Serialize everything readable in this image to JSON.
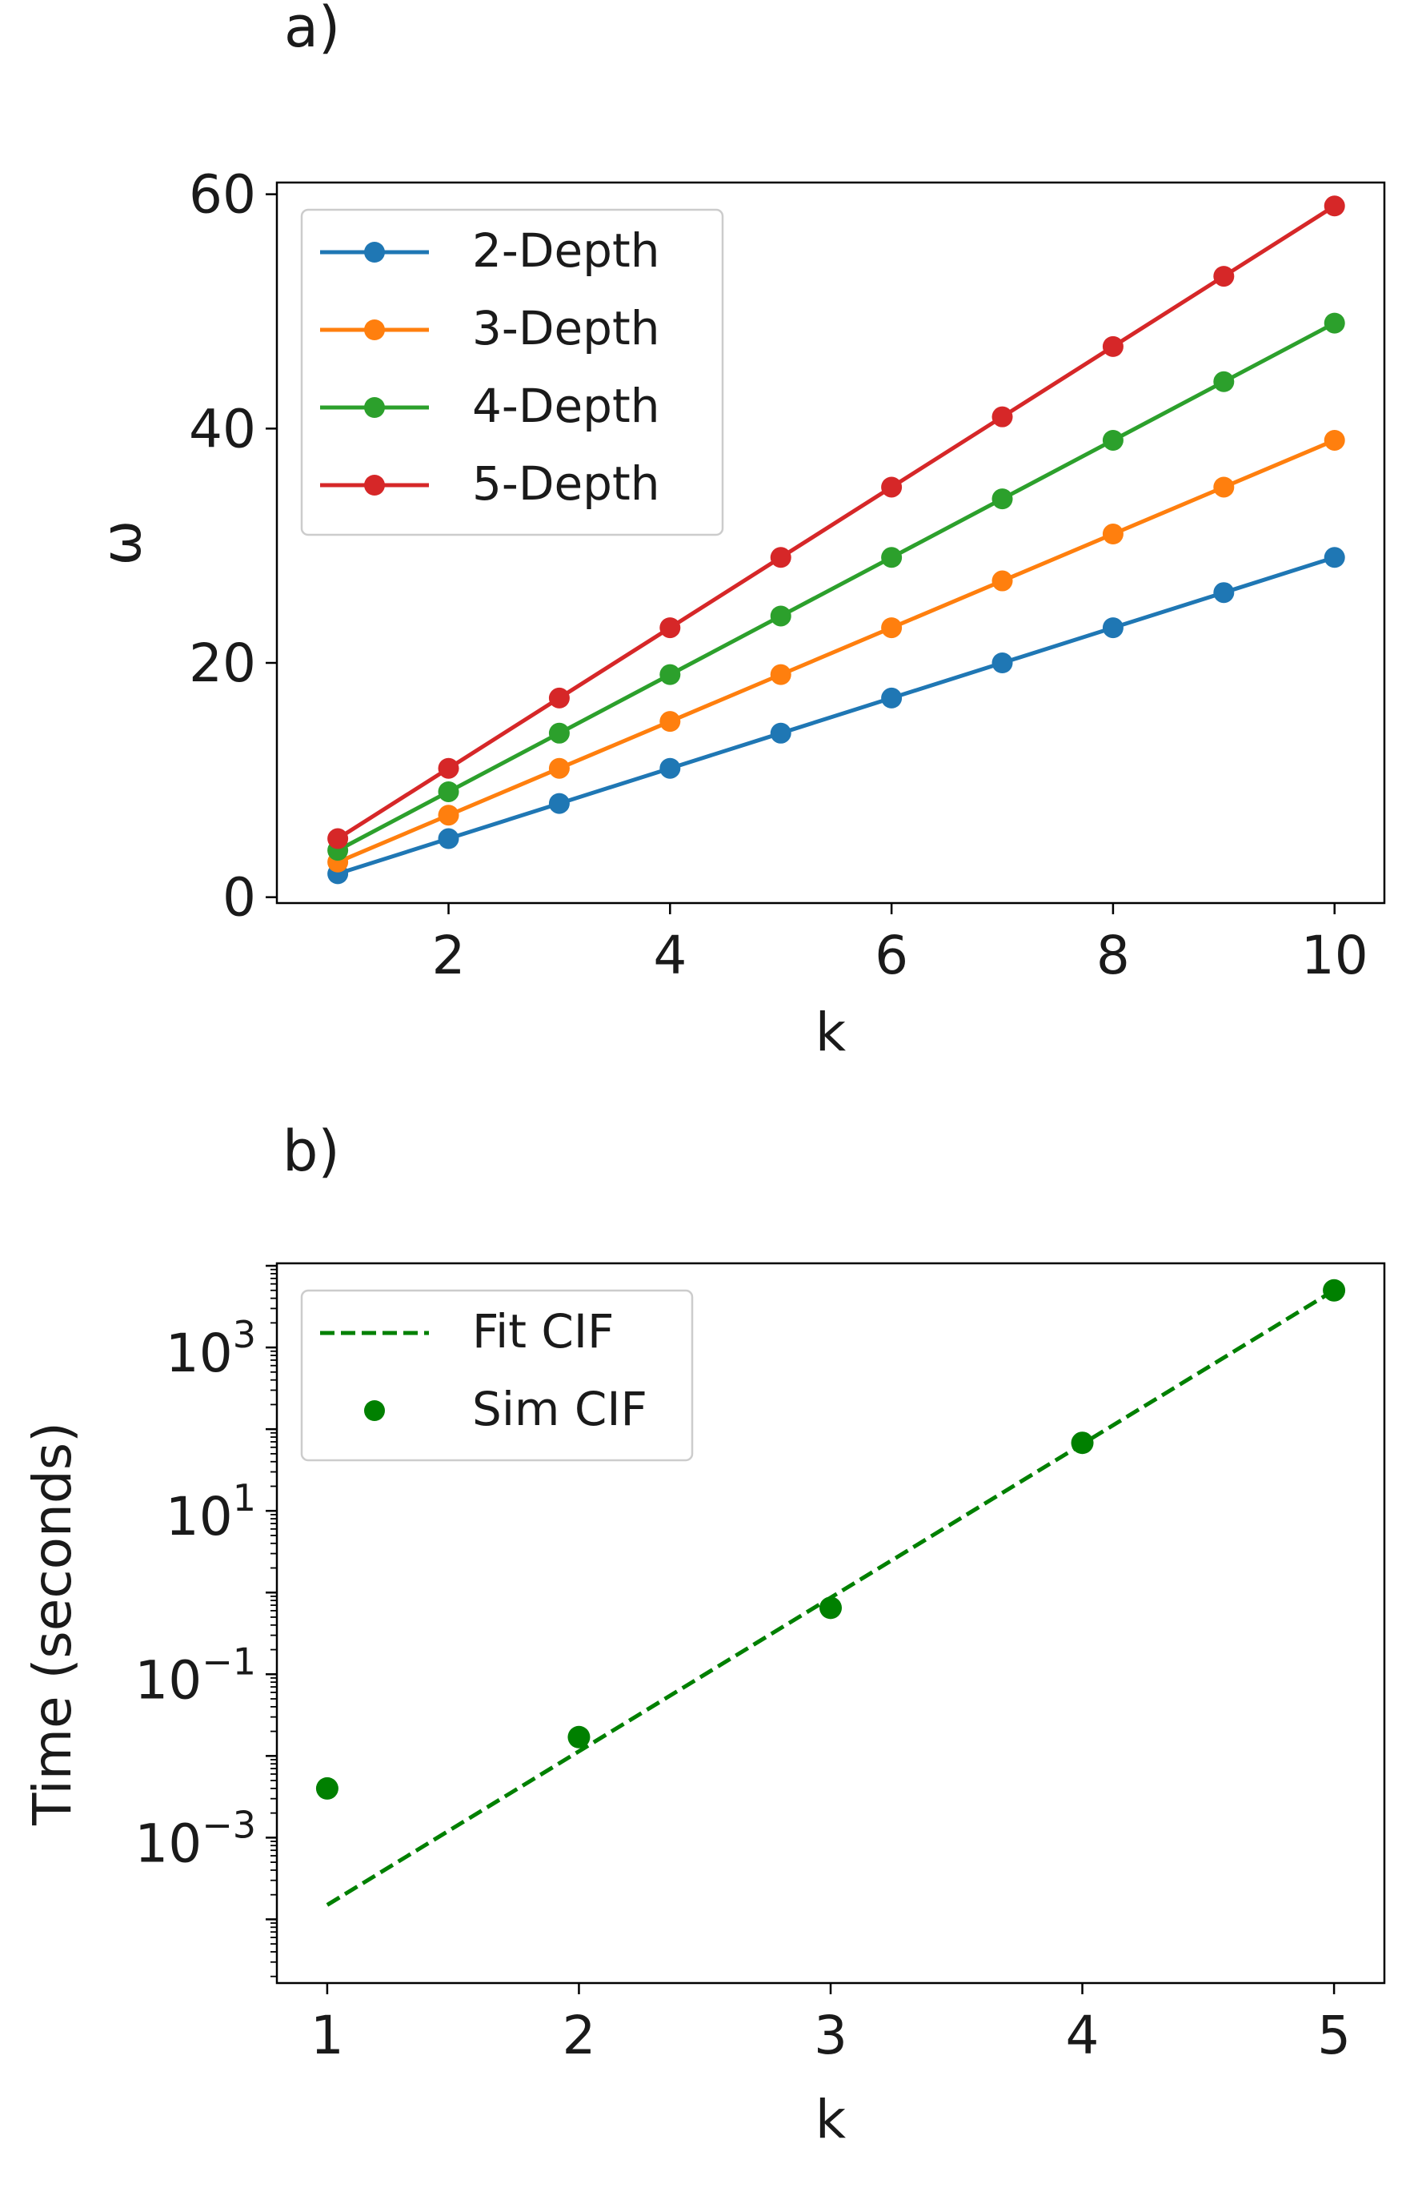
{
  "chart_data": [
    {
      "panel_label": "a)",
      "type": "line",
      "xlabel": "k",
      "ylabel": "ω",
      "x": [
        1,
        2,
        3,
        4,
        5,
        6,
        7,
        8,
        9,
        10
      ],
      "xlim": [
        0.45,
        10.45
      ],
      "ylim": [
        -0.5,
        61
      ],
      "xticks": [
        2,
        4,
        6,
        8,
        10
      ],
      "xtick_labels": [
        "2",
        "4",
        "6",
        "8",
        "10"
      ],
      "yticks": [
        0,
        20,
        40,
        60
      ],
      "ytick_labels": [
        "0",
        "20",
        "40",
        "60"
      ],
      "legend_position": "upper-left",
      "series": [
        {
          "name": "2-Depth",
          "color": "#1f77b4",
          "values": [
            2,
            5,
            8,
            11,
            14,
            17,
            20,
            23,
            26,
            29
          ]
        },
        {
          "name": "3-Depth",
          "color": "#ff7f0e",
          "values": [
            3,
            7,
            11,
            15,
            19,
            23,
            27,
            31,
            35,
            39
          ]
        },
        {
          "name": "4-Depth",
          "color": "#2ca02c",
          "values": [
            4,
            9,
            14,
            19,
            24,
            29,
            34,
            39,
            44,
            49
          ]
        },
        {
          "name": "5-Depth",
          "color": "#d62728",
          "values": [
            5,
            11,
            17,
            23,
            29,
            35,
            41,
            47,
            53,
            59
          ]
        }
      ]
    },
    {
      "panel_label": "b)",
      "type": "scatter",
      "yscale": "log",
      "xlabel": "k",
      "ylabel": "Time (seconds)",
      "xlim": [
        0.8,
        5.2
      ],
      "ylim_log10": [
        -4.78,
        4.03
      ],
      "xticks": [
        1,
        2,
        3,
        4,
        5
      ],
      "xtick_labels": [
        "1",
        "2",
        "3",
        "4",
        "5"
      ],
      "yticks": [
        {
          "log10": -3,
          "base": "10",
          "exponent": "−3"
        },
        {
          "log10": -1,
          "base": "10",
          "exponent": "−1"
        },
        {
          "log10": 1,
          "base": "10",
          "exponent": "1"
        },
        {
          "log10": 3,
          "base": "10",
          "exponent": "3"
        }
      ],
      "legend_position": "upper-left",
      "series": [
        {
          "name": "Fit CIF",
          "kind": "dashed-line",
          "color": "#008000",
          "x": [
            1,
            5
          ],
          "y": [
            0.00015,
            5000
          ]
        },
        {
          "name": "Sim CIF",
          "kind": "points",
          "color": "#008000",
          "x": [
            1,
            2,
            3,
            4,
            5
          ],
          "y": [
            0.004,
            0.017,
            0.65,
            68,
            5000
          ]
        }
      ]
    }
  ]
}
